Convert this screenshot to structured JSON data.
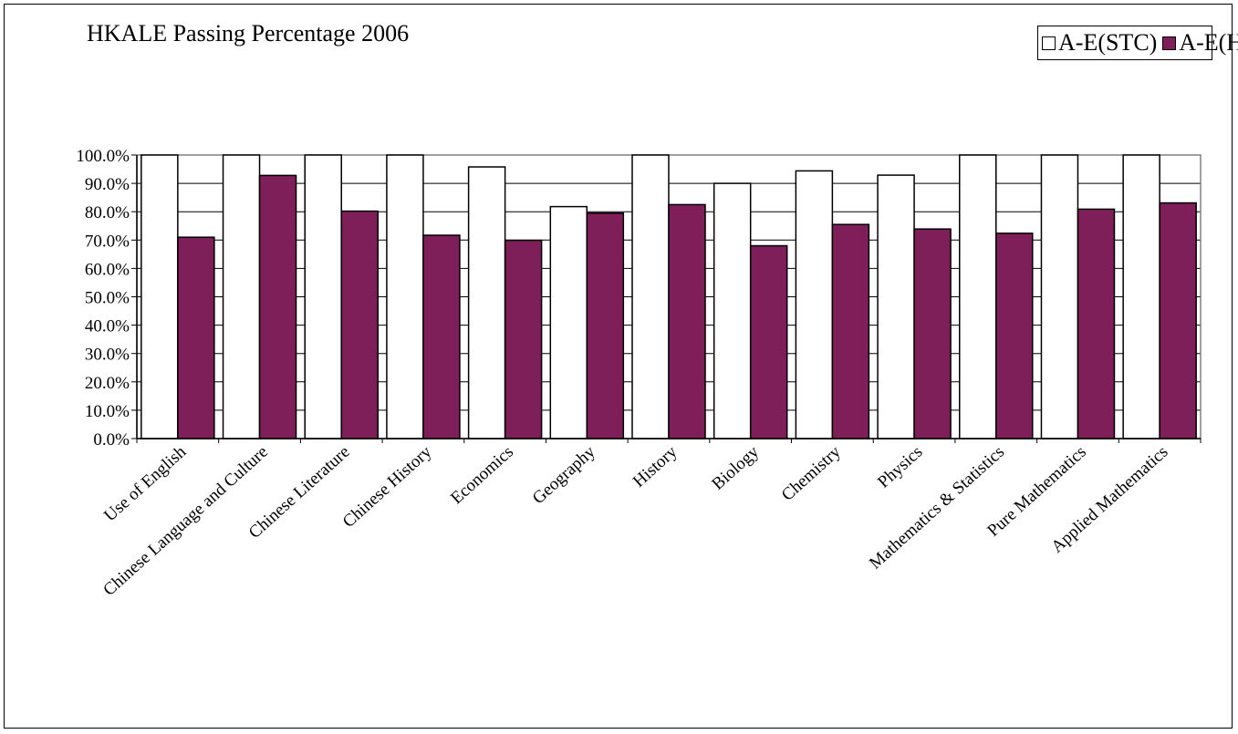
{
  "chart_data": {
    "type": "bar",
    "title": "HKALE Passing Percentage 2006",
    "xlabel": "",
    "ylabel": "",
    "ylim": [
      0,
      100
    ],
    "y_tick_step": 10,
    "y_tick_format": "percent_1dp",
    "grid": "horizontal",
    "legend_position": "top-right",
    "categories": [
      "Use of English",
      "Chinese Language and Culture",
      "Chinese Literature",
      "Chinese History",
      "Economics",
      "Geography",
      "History",
      "Biology",
      "Chemistry",
      "Physics",
      "Mathematics & Statistics",
      "Pure Mathematics",
      "Applied Mathematics"
    ],
    "series": [
      {
        "name": "A-E(STC)",
        "color": "#ffffff",
        "values": [
          100.0,
          100.0,
          100.0,
          100.0,
          95.8,
          81.8,
          100.0,
          90.0,
          94.4,
          92.9,
          100.0,
          100.0,
          100.0
        ]
      },
      {
        "name": "A-E(HK)",
        "color": "#7f1f5a",
        "values": [
          71.0,
          92.8,
          80.2,
          71.7,
          69.9,
          79.5,
          82.5,
          68.0,
          75.5,
          73.9,
          72.4,
          80.9,
          83.1
        ]
      }
    ]
  }
}
